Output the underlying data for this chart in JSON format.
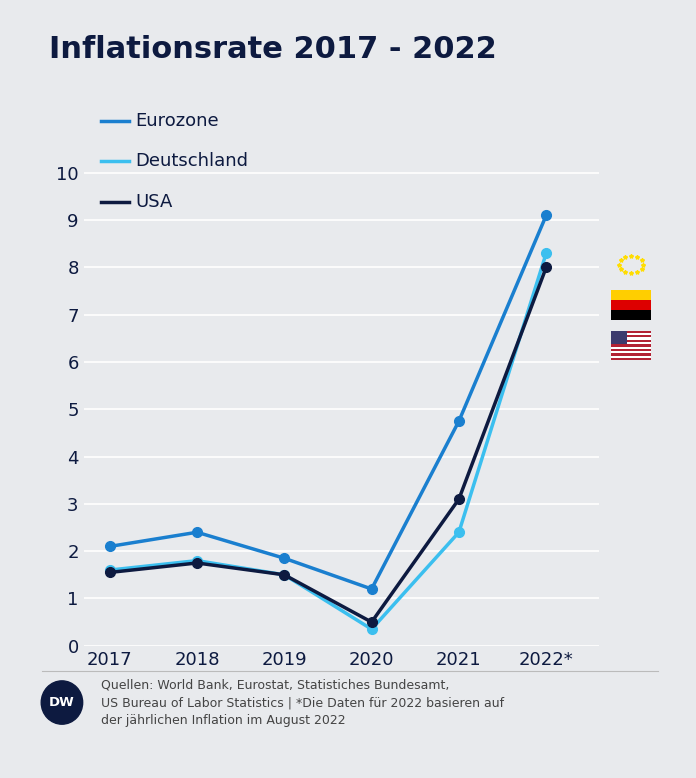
{
  "title": "Inflationsrate 2017 - 2022",
  "years": [
    "2017",
    "2018",
    "2019",
    "2020",
    "2021",
    "2022*"
  ],
  "eurozone": [
    2.1,
    2.4,
    1.85,
    1.2,
    4.75,
    9.1
  ],
  "deutschland": [
    1.6,
    1.8,
    1.5,
    0.35,
    2.4,
    8.3
  ],
  "usa": [
    1.55,
    1.75,
    1.5,
    0.5,
    3.1,
    8.0
  ],
  "color_eurozone": "#1a7fcf",
  "color_deutschland": "#3bbfef",
  "color_usa": "#0d1a40",
  "background_color": "#e8eaed",
  "title_color": "#0d1a40",
  "ylabel_max": 10,
  "ylabel_min": 0,
  "source_text": "Quellen: World Bank, Eurostat, Statistiches Bundesamt,\nUS Bureau of Labor Statistics | *Die Daten für 2022 basieren auf\nder jährlichen Inflation im August 2022",
  "legend_labels": [
    "Eurozone",
    "Deutschland",
    "USA"
  ],
  "line_width": 2.5,
  "marker_size": 7
}
